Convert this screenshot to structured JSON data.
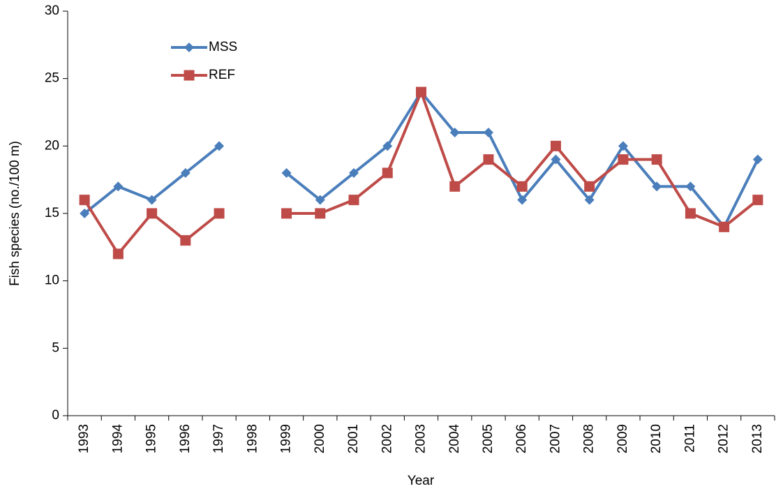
{
  "chart_data": {
    "type": "line",
    "y_label": "Fish species (no./100 m)",
    "x_label": "Year",
    "categories": [
      "1993",
      "1994",
      "1995",
      "1996",
      "1997",
      "1998",
      "1999",
      "2000",
      "2001",
      "2002",
      "2003",
      "2004",
      "2005",
      "2006",
      "2007",
      "2008",
      "2009",
      "2010",
      "2011",
      "2012",
      "2013"
    ],
    "series": [
      {
        "name": "MSS",
        "color": "#4a7ebb",
        "marker": "diamond",
        "values": [
          15,
          17,
          16,
          18,
          20,
          null,
          18,
          16,
          18,
          20,
          24,
          21,
          21,
          16,
          19,
          16,
          20,
          17,
          17,
          14,
          19
        ]
      },
      {
        "name": "REF",
        "color": "#be4b48",
        "marker": "square",
        "values": [
          16,
          12,
          15,
          13,
          15,
          null,
          15,
          15,
          16,
          18,
          24,
          17,
          19,
          17,
          20,
          17,
          19,
          19,
          15,
          14,
          16
        ]
      }
    ],
    "ylim": [
      0,
      30
    ],
    "yticks": [
      0,
      5,
      10,
      15,
      20,
      25,
      30
    ],
    "grid": false,
    "legend": "upper left"
  }
}
